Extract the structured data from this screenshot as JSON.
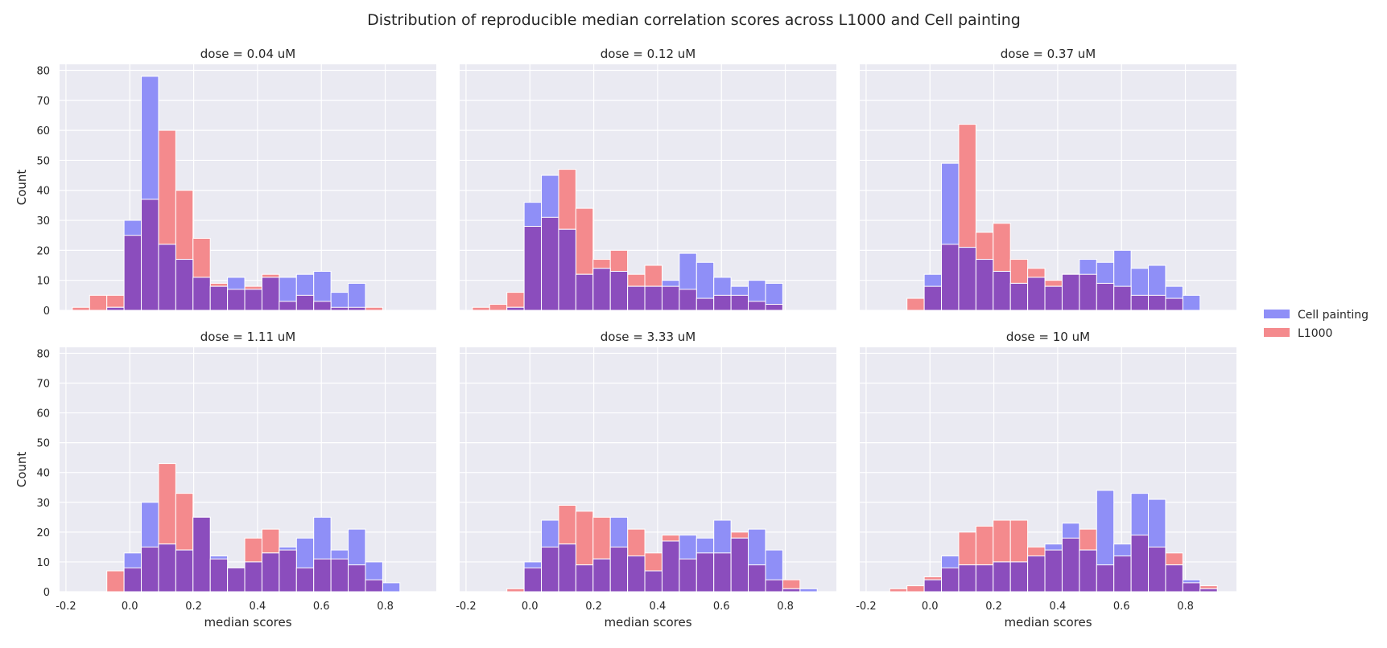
{
  "chart_data": {
    "type": "bar",
    "title": "Distribution of reproducible median correlation scores across L1000 and Cell painting",
    "xlabel": "median scores",
    "ylabel": "Count",
    "xlim": [
      -0.22,
      0.96
    ],
    "ylim": [
      0,
      82
    ],
    "xticks": [
      "-0.2",
      "0.0",
      "0.2",
      "0.4",
      "0.6",
      "0.8"
    ],
    "yticks": [
      "0",
      "10",
      "20",
      "30",
      "40",
      "50",
      "60",
      "70",
      "80"
    ],
    "bin_width": 0.054,
    "grid": true,
    "legend_position": "right",
    "colors": {
      "Cell painting": "#8f8ff7",
      "L1000": "#f48a8d",
      "overlap": "#8b4dbd",
      "panel_background": "#eaeaf2",
      "grid": "#ffffff"
    },
    "legend": [
      "Cell painting",
      "L1000"
    ],
    "panels": [
      {
        "title": "dose = 0.04 uM",
        "bins": [
          {
            "left": -0.18,
            "right": -0.126,
            "Cell painting": 0,
            "L1000": 1
          },
          {
            "left": -0.126,
            "right": -0.072,
            "Cell painting": 0,
            "L1000": 5
          },
          {
            "left": -0.072,
            "right": -0.018,
            "Cell painting": 1,
            "L1000": 5
          },
          {
            "left": -0.018,
            "right": 0.036,
            "Cell painting": 30,
            "L1000": 25
          },
          {
            "left": 0.036,
            "right": 0.09,
            "Cell painting": 78,
            "L1000": 37
          },
          {
            "left": 0.09,
            "right": 0.144,
            "Cell painting": 22,
            "L1000": 60
          },
          {
            "left": 0.144,
            "right": 0.198,
            "Cell painting": 17,
            "L1000": 40
          },
          {
            "left": 0.198,
            "right": 0.252,
            "Cell painting": 11,
            "L1000": 24
          },
          {
            "left": 0.252,
            "right": 0.306,
            "Cell painting": 8,
            "L1000": 9
          },
          {
            "left": 0.306,
            "right": 0.36,
            "Cell painting": 11,
            "L1000": 7
          },
          {
            "left": 0.36,
            "right": 0.414,
            "Cell painting": 7,
            "L1000": 8
          },
          {
            "left": 0.414,
            "right": 0.468,
            "Cell painting": 11,
            "L1000": 12
          },
          {
            "left": 0.468,
            "right": 0.522,
            "Cell painting": 11,
            "L1000": 3
          },
          {
            "left": 0.522,
            "right": 0.576,
            "Cell painting": 12,
            "L1000": 5
          },
          {
            "left": 0.576,
            "right": 0.63,
            "Cell painting": 13,
            "L1000": 3
          },
          {
            "left": 0.63,
            "right": 0.684,
            "Cell painting": 6,
            "L1000": 1
          },
          {
            "left": 0.684,
            "right": 0.738,
            "Cell painting": 9,
            "L1000": 1
          },
          {
            "left": 0.738,
            "right": 0.792,
            "Cell painting": 0,
            "L1000": 1
          }
        ]
      },
      {
        "title": "dose = 0.12 uM",
        "bins": [
          {
            "left": -0.18,
            "right": -0.126,
            "Cell painting": 0,
            "L1000": 1
          },
          {
            "left": -0.126,
            "right": -0.072,
            "Cell painting": 0,
            "L1000": 2
          },
          {
            "left": -0.072,
            "right": -0.018,
            "Cell painting": 1,
            "L1000": 6
          },
          {
            "left": -0.018,
            "right": 0.036,
            "Cell painting": 36,
            "L1000": 28
          },
          {
            "left": 0.036,
            "right": 0.09,
            "Cell painting": 45,
            "L1000": 31
          },
          {
            "left": 0.09,
            "right": 0.144,
            "Cell painting": 27,
            "L1000": 47
          },
          {
            "left": 0.144,
            "right": 0.198,
            "Cell painting": 12,
            "L1000": 34
          },
          {
            "left": 0.198,
            "right": 0.252,
            "Cell painting": 14,
            "L1000": 17
          },
          {
            "left": 0.252,
            "right": 0.306,
            "Cell painting": 13,
            "L1000": 20
          },
          {
            "left": 0.306,
            "right": 0.36,
            "Cell painting": 8,
            "L1000": 12
          },
          {
            "left": 0.36,
            "right": 0.414,
            "Cell painting": 8,
            "L1000": 15
          },
          {
            "left": 0.414,
            "right": 0.468,
            "Cell painting": 10,
            "L1000": 8
          },
          {
            "left": 0.468,
            "right": 0.522,
            "Cell painting": 19,
            "L1000": 7
          },
          {
            "left": 0.522,
            "right": 0.576,
            "Cell painting": 16,
            "L1000": 4
          },
          {
            "left": 0.576,
            "right": 0.63,
            "Cell painting": 11,
            "L1000": 5
          },
          {
            "left": 0.63,
            "right": 0.684,
            "Cell painting": 8,
            "L1000": 5
          },
          {
            "left": 0.684,
            "right": 0.738,
            "Cell painting": 10,
            "L1000": 3
          },
          {
            "left": 0.738,
            "right": 0.792,
            "Cell painting": 9,
            "L1000": 2
          }
        ]
      },
      {
        "title": "dose = 0.37 uM",
        "bins": [
          {
            "left": -0.072,
            "right": -0.018,
            "Cell painting": 0,
            "L1000": 4
          },
          {
            "left": -0.018,
            "right": 0.036,
            "Cell painting": 12,
            "L1000": 8
          },
          {
            "left": 0.036,
            "right": 0.09,
            "Cell painting": 49,
            "L1000": 22
          },
          {
            "left": 0.09,
            "right": 0.144,
            "Cell painting": 21,
            "L1000": 62
          },
          {
            "left": 0.144,
            "right": 0.198,
            "Cell painting": 17,
            "L1000": 26
          },
          {
            "left": 0.198,
            "right": 0.252,
            "Cell painting": 13,
            "L1000": 29
          },
          {
            "left": 0.252,
            "right": 0.306,
            "Cell painting": 9,
            "L1000": 17
          },
          {
            "left": 0.306,
            "right": 0.36,
            "Cell painting": 11,
            "L1000": 14
          },
          {
            "left": 0.36,
            "right": 0.414,
            "Cell painting": 8,
            "L1000": 10
          },
          {
            "left": 0.414,
            "right": 0.468,
            "Cell painting": 12,
            "L1000": 12
          },
          {
            "left": 0.468,
            "right": 0.522,
            "Cell painting": 17,
            "L1000": 12
          },
          {
            "left": 0.522,
            "right": 0.576,
            "Cell painting": 16,
            "L1000": 9
          },
          {
            "left": 0.576,
            "right": 0.63,
            "Cell painting": 20,
            "L1000": 8
          },
          {
            "left": 0.63,
            "right": 0.684,
            "Cell painting": 14,
            "L1000": 5
          },
          {
            "left": 0.684,
            "right": 0.738,
            "Cell painting": 15,
            "L1000": 5
          },
          {
            "left": 0.738,
            "right": 0.792,
            "Cell painting": 8,
            "L1000": 4
          },
          {
            "left": 0.792,
            "right": 0.846,
            "Cell painting": 5,
            "L1000": 0
          }
        ]
      },
      {
        "title": "dose = 1.11 uM",
        "bins": [
          {
            "left": -0.072,
            "right": -0.018,
            "Cell painting": 0,
            "L1000": 7
          },
          {
            "left": -0.018,
            "right": 0.036,
            "Cell painting": 13,
            "L1000": 8
          },
          {
            "left": 0.036,
            "right": 0.09,
            "Cell painting": 30,
            "L1000": 15
          },
          {
            "left": 0.09,
            "right": 0.144,
            "Cell painting": 16,
            "L1000": 43
          },
          {
            "left": 0.144,
            "right": 0.198,
            "Cell painting": 14,
            "L1000": 33
          },
          {
            "left": 0.198,
            "right": 0.252,
            "Cell painting": 25,
            "L1000": 25
          },
          {
            "left": 0.252,
            "right": 0.306,
            "Cell painting": 12,
            "L1000": 11
          },
          {
            "left": 0.306,
            "right": 0.36,
            "Cell painting": 8,
            "L1000": 8
          },
          {
            "left": 0.36,
            "right": 0.414,
            "Cell painting": 10,
            "L1000": 18
          },
          {
            "left": 0.414,
            "right": 0.468,
            "Cell painting": 13,
            "L1000": 21
          },
          {
            "left": 0.468,
            "right": 0.522,
            "Cell painting": 15,
            "L1000": 14
          },
          {
            "left": 0.522,
            "right": 0.576,
            "Cell painting": 18,
            "L1000": 8
          },
          {
            "left": 0.576,
            "right": 0.63,
            "Cell painting": 25,
            "L1000": 11
          },
          {
            "left": 0.63,
            "right": 0.684,
            "Cell painting": 14,
            "L1000": 11
          },
          {
            "left": 0.684,
            "right": 0.738,
            "Cell painting": 21,
            "L1000": 9
          },
          {
            "left": 0.738,
            "right": 0.792,
            "Cell painting": 10,
            "L1000": 4
          },
          {
            "left": 0.792,
            "right": 0.846,
            "Cell painting": 3,
            "L1000": 0
          }
        ]
      },
      {
        "title": "dose = 3.33 uM",
        "bins": [
          {
            "left": -0.072,
            "right": -0.018,
            "Cell painting": 0,
            "L1000": 1
          },
          {
            "left": -0.018,
            "right": 0.036,
            "Cell painting": 10,
            "L1000": 8
          },
          {
            "left": 0.036,
            "right": 0.09,
            "Cell painting": 24,
            "L1000": 15
          },
          {
            "left": 0.09,
            "right": 0.144,
            "Cell painting": 16,
            "L1000": 29
          },
          {
            "left": 0.144,
            "right": 0.198,
            "Cell painting": 9,
            "L1000": 27
          },
          {
            "left": 0.198,
            "right": 0.252,
            "Cell painting": 11,
            "L1000": 25
          },
          {
            "left": 0.252,
            "right": 0.306,
            "Cell painting": 25,
            "L1000": 15
          },
          {
            "left": 0.306,
            "right": 0.36,
            "Cell painting": 12,
            "L1000": 21
          },
          {
            "left": 0.36,
            "right": 0.414,
            "Cell painting": 7,
            "L1000": 13
          },
          {
            "left": 0.414,
            "right": 0.468,
            "Cell painting": 17,
            "L1000": 19
          },
          {
            "left": 0.468,
            "right": 0.522,
            "Cell painting": 19,
            "L1000": 11
          },
          {
            "left": 0.522,
            "right": 0.576,
            "Cell painting": 18,
            "L1000": 13
          },
          {
            "left": 0.576,
            "right": 0.63,
            "Cell painting": 24,
            "L1000": 13
          },
          {
            "left": 0.63,
            "right": 0.684,
            "Cell painting": 18,
            "L1000": 20
          },
          {
            "left": 0.684,
            "right": 0.738,
            "Cell painting": 21,
            "L1000": 9
          },
          {
            "left": 0.738,
            "right": 0.792,
            "Cell painting": 14,
            "L1000": 4
          },
          {
            "left": 0.792,
            "right": 0.846,
            "Cell painting": 1,
            "L1000": 4
          },
          {
            "left": 0.846,
            "right": 0.9,
            "Cell painting": 1,
            "L1000": 0
          }
        ]
      },
      {
        "title": "dose = 10 uM",
        "bins": [
          {
            "left": -0.126,
            "right": -0.072,
            "Cell painting": 0,
            "L1000": 1
          },
          {
            "left": -0.072,
            "right": -0.018,
            "Cell painting": 0,
            "L1000": 2
          },
          {
            "left": -0.018,
            "right": 0.036,
            "Cell painting": 4,
            "L1000": 5
          },
          {
            "left": 0.036,
            "right": 0.09,
            "Cell painting": 12,
            "L1000": 8
          },
          {
            "left": 0.09,
            "right": 0.144,
            "Cell painting": 9,
            "L1000": 20
          },
          {
            "left": 0.144,
            "right": 0.198,
            "Cell painting": 9,
            "L1000": 22
          },
          {
            "left": 0.198,
            "right": 0.252,
            "Cell painting": 10,
            "L1000": 24
          },
          {
            "left": 0.252,
            "right": 0.306,
            "Cell painting": 10,
            "L1000": 24
          },
          {
            "left": 0.306,
            "right": 0.36,
            "Cell painting": 12,
            "L1000": 15
          },
          {
            "left": 0.36,
            "right": 0.414,
            "Cell painting": 16,
            "L1000": 14
          },
          {
            "left": 0.414,
            "right": 0.468,
            "Cell painting": 23,
            "L1000": 18
          },
          {
            "left": 0.468,
            "right": 0.522,
            "Cell painting": 14,
            "L1000": 21
          },
          {
            "left": 0.522,
            "right": 0.576,
            "Cell painting": 34,
            "L1000": 9
          },
          {
            "left": 0.576,
            "right": 0.63,
            "Cell painting": 16,
            "L1000": 12
          },
          {
            "left": 0.63,
            "right": 0.684,
            "Cell painting": 33,
            "L1000": 19
          },
          {
            "left": 0.684,
            "right": 0.738,
            "Cell painting": 31,
            "L1000": 15
          },
          {
            "left": 0.738,
            "right": 0.792,
            "Cell painting": 9,
            "L1000": 13
          },
          {
            "left": 0.792,
            "right": 0.846,
            "Cell painting": 4,
            "L1000": 3
          },
          {
            "left": 0.846,
            "right": 0.9,
            "Cell painting": 1,
            "L1000": 2
          }
        ]
      }
    ]
  }
}
